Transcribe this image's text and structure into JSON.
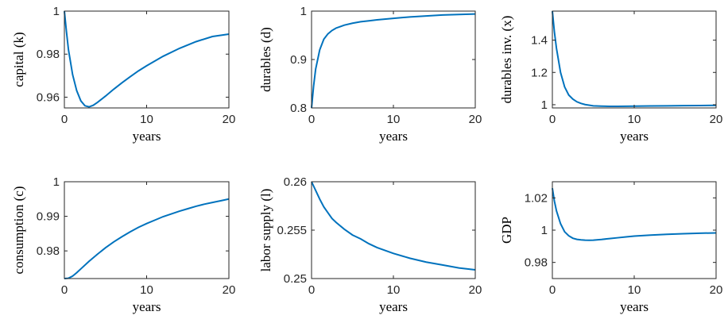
{
  "chart_data": [
    {
      "type": "line",
      "ylabel": "capital (k)",
      "xlabel": "years",
      "xlim": [
        0,
        20
      ],
      "ylim": [
        0.955,
        1.0
      ],
      "xticks": [
        0,
        10,
        20
      ],
      "xtick_labels": [
        "0",
        "10",
        "20"
      ],
      "yticks": [
        0.96,
        0.98,
        1.0
      ],
      "ytick_labels": [
        "0.96",
        "0.98",
        "1"
      ],
      "color": "#0072BD",
      "x": [
        0,
        0.25,
        0.5,
        1,
        1.5,
        2,
        2.5,
        3,
        3.5,
        4,
        5,
        6,
        7,
        8,
        9,
        10,
        12,
        14,
        16,
        18,
        20
      ],
      "y": [
        1.0,
        0.9905,
        0.982,
        0.9705,
        0.963,
        0.9583,
        0.956,
        0.9555,
        0.9562,
        0.9575,
        0.9605,
        0.9637,
        0.9667,
        0.9695,
        0.9722,
        0.9746,
        0.979,
        0.9827,
        0.9858,
        0.9882,
        0.9893
      ]
    },
    {
      "type": "line",
      "ylabel": "durables (d)",
      "xlabel": "years",
      "xlim": [
        0,
        20
      ],
      "ylim": [
        0.8,
        1.0
      ],
      "xticks": [
        0,
        10,
        20
      ],
      "xtick_labels": [
        "0",
        "10",
        "20"
      ],
      "yticks": [
        0.8,
        0.9,
        1.0
      ],
      "ytick_labels": [
        "0.8",
        "0.9",
        "1"
      ],
      "color": "#0072BD",
      "x": [
        0,
        0.25,
        0.5,
        1,
        1.5,
        2,
        2.5,
        3,
        3.5,
        4,
        5,
        6,
        7,
        8,
        10,
        12,
        14,
        16,
        18,
        20
      ],
      "y": [
        0.8,
        0.845,
        0.88,
        0.92,
        0.942,
        0.953,
        0.96,
        0.965,
        0.968,
        0.971,
        0.975,
        0.978,
        0.98,
        0.982,
        0.985,
        0.988,
        0.99,
        0.992,
        0.993,
        0.994
      ]
    },
    {
      "type": "line",
      "ylabel": "durables inv. (x)",
      "xlabel": "years",
      "xlim": [
        0,
        20
      ],
      "ylim": [
        0.98,
        1.58
      ],
      "xticks": [
        0,
        10,
        20
      ],
      "xtick_labels": [
        "0",
        "10",
        "20"
      ],
      "yticks": [
        1.0,
        1.2,
        1.4
      ],
      "ytick_labels": [
        "1",
        "1.2",
        "1.4"
      ],
      "color": "#0072BD",
      "x": [
        0,
        0.25,
        0.5,
        1,
        1.5,
        2,
        2.5,
        3,
        3.5,
        4,
        5,
        6,
        7,
        8,
        10,
        12,
        14,
        16,
        18,
        20
      ],
      "y": [
        1.58,
        1.45,
        1.35,
        1.2,
        1.11,
        1.06,
        1.035,
        1.018,
        1.008,
        1.001,
        0.993,
        0.991,
        0.99,
        0.99,
        0.991,
        0.992,
        0.993,
        0.994,
        0.995,
        0.996
      ]
    },
    {
      "type": "line",
      "ylabel": "consumption (c)",
      "xlabel": "years",
      "xlim": [
        0,
        20
      ],
      "ylim": [
        0.972,
        1.0
      ],
      "xticks": [
        0,
        10,
        20
      ],
      "xtick_labels": [
        "0",
        "10",
        "20"
      ],
      "yticks": [
        0.98,
        0.99,
        1.0
      ],
      "ytick_labels": [
        "0.98",
        "0.99",
        "1"
      ],
      "color": "#0072BD",
      "x": [
        0,
        0.5,
        1,
        1.5,
        2,
        3,
        4,
        5,
        6,
        7,
        8,
        9,
        10,
        11,
        12,
        13,
        14,
        15,
        16,
        17,
        18,
        19,
        20
      ],
      "y": [
        0.972,
        0.9721,
        0.9727,
        0.9737,
        0.9748,
        0.977,
        0.979,
        0.9809,
        0.9826,
        0.9841,
        0.9855,
        0.9868,
        0.9879,
        0.9889,
        0.9899,
        0.9907,
        0.9915,
        0.9922,
        0.9929,
        0.9935,
        0.994,
        0.9945,
        0.995
      ]
    },
    {
      "type": "line",
      "ylabel": "labor supply (l)",
      "xlabel": "years",
      "xlim": [
        0,
        20
      ],
      "ylim": [
        0.25,
        0.26
      ],
      "xticks": [
        0,
        10,
        20
      ],
      "xtick_labels": [
        "0",
        "10",
        "20"
      ],
      "yticks": [
        0.25,
        0.255,
        0.26
      ],
      "ytick_labels": [
        "0.25",
        "0.255",
        "0.26"
      ],
      "color": "#0072BD",
      "x": [
        0,
        0.5,
        1,
        1.5,
        2,
        2.5,
        3,
        4,
        5,
        6,
        7,
        8,
        10,
        12,
        14,
        16,
        18,
        20
      ],
      "y": [
        0.26,
        0.2591,
        0.2582,
        0.2574,
        0.2568,
        0.2562,
        0.2558,
        0.2551,
        0.2545,
        0.2541,
        0.2536,
        0.2532,
        0.2526,
        0.2521,
        0.2517,
        0.2514,
        0.2511,
        0.2509
      ]
    },
    {
      "type": "line",
      "ylabel": "GDP",
      "xlabel": "years",
      "xlim": [
        0,
        20
      ],
      "ylim": [
        0.97,
        1.03
      ],
      "xticks": [
        0,
        10,
        20
      ],
      "xtick_labels": [
        "0",
        "10",
        "20"
      ],
      "yticks": [
        0.98,
        1.0,
        1.02
      ],
      "ytick_labels": [
        "0.98",
        "1",
        "1.02"
      ],
      "color": "#0072BD",
      "x": [
        0,
        0.25,
        0.5,
        1,
        1.5,
        2,
        2.5,
        3,
        3.5,
        4,
        4.5,
        5,
        6,
        7,
        8,
        9,
        10,
        12,
        14,
        16,
        18,
        20
      ],
      "y": [
        1.026,
        1.018,
        1.012,
        1.004,
        0.999,
        0.9965,
        0.995,
        0.9943,
        0.994,
        0.9938,
        0.9937,
        0.9938,
        0.9942,
        0.9948,
        0.9953,
        0.9958,
        0.9963,
        0.9969,
        0.9974,
        0.9978,
        0.9981,
        0.9983
      ]
    }
  ]
}
